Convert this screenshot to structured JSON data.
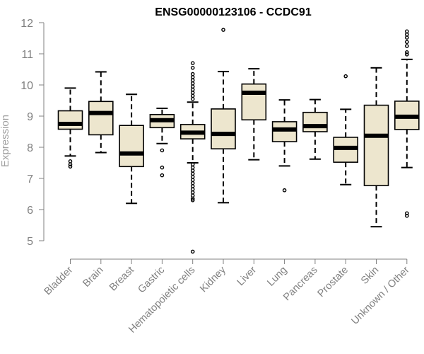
{
  "colors": {
    "box_fill": "#EDE6CE",
    "stroke": "#000000",
    "axis": "#808080",
    "label": "#808080"
  },
  "chart_data": {
    "type": "boxplot",
    "title": "ENSG00000123106 - CCDC91",
    "xlabel": "",
    "ylabel": "Expression",
    "ylim": [
      4.6,
      12.1
    ],
    "yticks": [
      5,
      6,
      7,
      8,
      9,
      10,
      11,
      12
    ],
    "ytick_labels": [
      "5",
      "6",
      "7",
      "8",
      "9",
      "10",
      "11",
      "12"
    ],
    "categories": [
      "Bladder",
      "Brain",
      "Breast",
      "Gastric",
      "Hematopoietic cells",
      "Kidney",
      "Liver",
      "Lung",
      "Pancreas",
      "Prostate",
      "Skin",
      "Unknown / Other"
    ],
    "boxes": [
      {
        "category": "Bladder",
        "whisker_low": 7.72,
        "q1": 8.58,
        "median": 8.75,
        "q3": 9.17,
        "whisker_high": 9.9,
        "outliers": [
          7.38,
          7.45,
          7.55
        ]
      },
      {
        "category": "Brain",
        "whisker_low": 7.83,
        "q1": 8.4,
        "median": 9.1,
        "q3": 9.47,
        "whisker_high": 10.42,
        "outliers": []
      },
      {
        "category": "Breast",
        "whisker_low": 6.2,
        "q1": 7.38,
        "median": 7.8,
        "q3": 8.7,
        "whisker_high": 9.7,
        "outliers": []
      },
      {
        "category": "Gastric",
        "whisker_low": 8.12,
        "q1": 8.63,
        "median": 8.87,
        "q3": 9.05,
        "whisker_high": 9.25,
        "outliers": [
          7.1,
          7.35,
          7.9
        ]
      },
      {
        "category": "Hematopoietic cells",
        "whisker_low": 7.5,
        "q1": 8.27,
        "median": 8.47,
        "q3": 8.73,
        "whisker_high": 9.45,
        "outliers": [
          4.65,
          6.3,
          6.35,
          6.45,
          6.55,
          6.65,
          6.75,
          6.85,
          6.95,
          7.05,
          7.15,
          7.25,
          7.35,
          7.45,
          9.55,
          9.65,
          9.75,
          9.85,
          9.95,
          10.05,
          10.15,
          10.25,
          10.35,
          10.55,
          10.7
        ]
      },
      {
        "category": "Kidney",
        "whisker_low": 6.22,
        "q1": 7.95,
        "median": 8.43,
        "q3": 9.23,
        "whisker_high": 10.43,
        "outliers": [
          11.77
        ]
      },
      {
        "category": "Liver",
        "whisker_low": 7.6,
        "q1": 8.88,
        "median": 9.75,
        "q3": 10.03,
        "whisker_high": 10.52,
        "outliers": []
      },
      {
        "category": "Lung",
        "whisker_low": 7.4,
        "q1": 8.18,
        "median": 8.57,
        "q3": 8.82,
        "whisker_high": 9.52,
        "outliers": [
          6.62
        ]
      },
      {
        "category": "Pancreas",
        "whisker_low": 7.62,
        "q1": 8.5,
        "median": 8.68,
        "q3": 9.12,
        "whisker_high": 9.53,
        "outliers": []
      },
      {
        "category": "Prostate",
        "whisker_low": 6.8,
        "q1": 7.52,
        "median": 7.98,
        "q3": 8.32,
        "whisker_high": 9.22,
        "outliers": [
          10.28
        ]
      },
      {
        "category": "Skin",
        "whisker_low": 5.45,
        "q1": 6.77,
        "median": 8.37,
        "q3": 9.35,
        "whisker_high": 10.55,
        "outliers": []
      },
      {
        "category": "Unknown / Other",
        "whisker_low": 7.35,
        "q1": 8.57,
        "median": 8.98,
        "q3": 9.48,
        "whisker_high": 10.82,
        "outliers": [
          5.8,
          5.88,
          10.98,
          11.05,
          11.25,
          11.38,
          11.52,
          11.62,
          11.72
        ]
      }
    ]
  }
}
